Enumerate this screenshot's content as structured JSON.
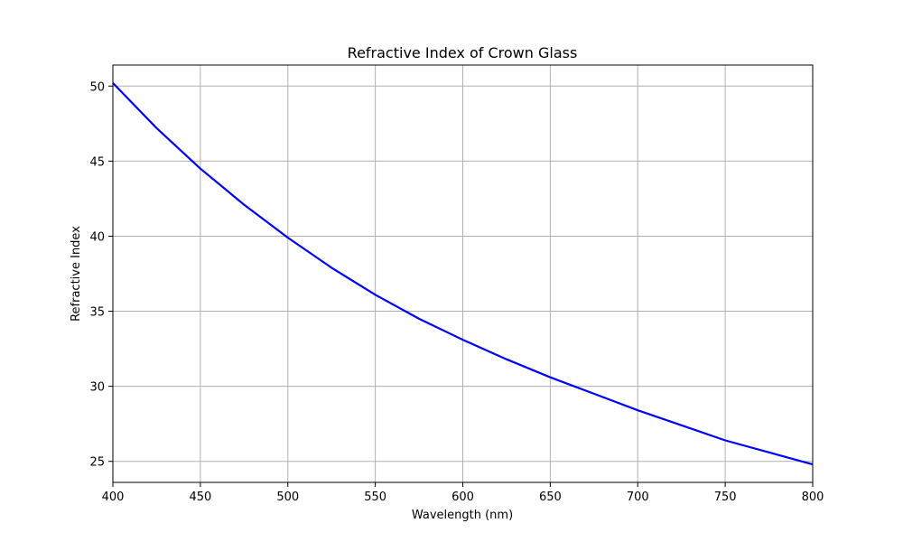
{
  "chart_data": {
    "type": "line",
    "title": "Refractive Index of Crown Glass",
    "xlabel": "Wavelength (nm)",
    "ylabel": "Refractive Index",
    "xlim": [
      400,
      800
    ],
    "ylim": [
      23.6,
      51.4
    ],
    "xticks": [
      400,
      450,
      500,
      550,
      600,
      650,
      700,
      750,
      800
    ],
    "yticks": [
      25,
      30,
      35,
      40,
      45,
      50
    ],
    "grid": true,
    "series": [
      {
        "color": "#0000ff",
        "x": [
          400,
          425,
          450,
          475,
          500,
          525,
          550,
          575,
          600,
          625,
          650,
          675,
          700,
          725,
          750,
          775,
          800
        ],
        "y": [
          50.2,
          47.2,
          44.5,
          42.1,
          39.9,
          37.9,
          36.1,
          34.5,
          33.1,
          31.8,
          30.6,
          29.5,
          28.4,
          27.4,
          26.4,
          25.6,
          24.8
        ]
      }
    ]
  }
}
